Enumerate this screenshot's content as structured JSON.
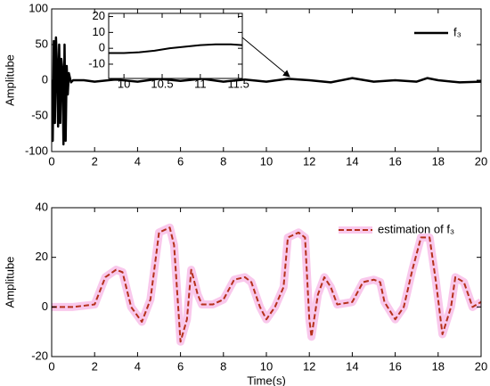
{
  "chart_data": [
    {
      "type": "line",
      "ylabel": "Amplitube",
      "legend": "upper right",
      "xlim": [
        0,
        20
      ],
      "ylim": [
        -100,
        100
      ],
      "xticks": [
        0,
        2,
        4,
        6,
        8,
        10,
        12,
        14,
        16,
        18,
        20
      ],
      "yticks": [
        -100,
        -50,
        0,
        50,
        100
      ],
      "x": [
        0,
        0.05,
        0.1,
        0.15,
        0.2,
        0.25,
        0.3,
        0.35,
        0.4,
        0.45,
        0.5,
        0.55,
        0.6,
        0.65,
        0.7,
        0.75,
        0.8,
        0.9,
        1.0,
        1.5,
        2,
        3,
        4,
        5,
        6,
        7,
        8,
        9,
        10,
        11,
        12,
        13,
        14,
        15,
        16,
        17,
        17.5,
        18,
        19,
        20
      ],
      "series": [
        {
          "name": "f₃",
          "color": "#000000",
          "values": [
            0,
            -85,
            55,
            -60,
            60,
            20,
            -65,
            50,
            -60,
            30,
            15,
            -90,
            50,
            -85,
            20,
            -20,
            10,
            -3,
            0,
            0,
            -2,
            1,
            -2,
            2,
            -1,
            2,
            -2,
            1,
            -2,
            2,
            0,
            -3,
            3,
            -2,
            0,
            -2,
            3,
            0,
            -3,
            -2
          ]
        }
      ]
    },
    {
      "type": "line",
      "xlim": [
        9.8,
        11.55
      ],
      "ylim": [
        -19,
        22
      ],
      "xticks": [
        10,
        10.5,
        11,
        11.5
      ],
      "yticks": [
        -10,
        0,
        10,
        20
      ],
      "x": [
        9.8,
        10,
        10.2,
        10.4,
        10.6,
        10.8,
        11,
        11.2,
        11.4,
        11.55
      ],
      "series": [
        {
          "color": "#000000",
          "values": [
            -3,
            -3,
            -2.5,
            -1.5,
            0,
            1,
            2,
            2.5,
            2.5,
            2
          ]
        }
      ]
    },
    {
      "type": "line",
      "xlabel": "Time(s)",
      "ylabel": "Amplitube",
      "legend": "upper right",
      "xlim": [
        0,
        20
      ],
      "ylim": [
        -20,
        40
      ],
      "xticks": [
        0,
        2,
        4,
        6,
        8,
        10,
        12,
        14,
        16,
        18,
        20
      ],
      "yticks": [
        -20,
        0,
        20,
        40
      ],
      "x": [
        0,
        1,
        1.5,
        2,
        2.5,
        3,
        3.3,
        3.7,
        4.2,
        4.6,
        5,
        5.5,
        5.7,
        6,
        6.3,
        6.5,
        6.8,
        7,
        7.5,
        8,
        8.5,
        9,
        9.3,
        9.7,
        10,
        10.4,
        10.8,
        11,
        11.5,
        11.8,
        12,
        12.1,
        12.4,
        12.7,
        13,
        13.3,
        14,
        14.5,
        15,
        15.3,
        15.5,
        16,
        16.4,
        16.8,
        17.2,
        17.6,
        17.9,
        18.2,
        18.6,
        18.8,
        19.2,
        19.6,
        20
      ],
      "series": [
        {
          "color": "#f9c8ec",
          "values": [
            0,
            0,
            0.5,
            1,
            12,
            15,
            14,
            0,
            -6,
            3,
            30,
            32,
            25,
            -14,
            -5,
            15,
            5,
            1,
            1,
            3,
            11,
            12,
            10,
            0,
            -5,
            0,
            8,
            28,
            30,
            28,
            -5,
            -12,
            5,
            12,
            8,
            1,
            2,
            10,
            11,
            10,
            2,
            -5,
            0,
            15,
            28,
            28,
            10,
            -11,
            0,
            12,
            10,
            0,
            2
          ]
        },
        {
          "name": "estimation of f₃",
          "color": "#b5301a",
          "values": [
            0,
            0,
            0.5,
            1,
            12,
            15,
            14,
            0,
            -6,
            3,
            30,
            32,
            25,
            -14,
            -5,
            15,
            5,
            1,
            1,
            3,
            11,
            12,
            10,
            0,
            -5,
            0,
            8,
            28,
            30,
            28,
            -5,
            -12,
            5,
            12,
            8,
            1,
            2,
            10,
            11,
            10,
            2,
            -5,
            0,
            15,
            28,
            28,
            10,
            -11,
            0,
            12,
            10,
            0,
            2
          ]
        }
      ]
    }
  ]
}
